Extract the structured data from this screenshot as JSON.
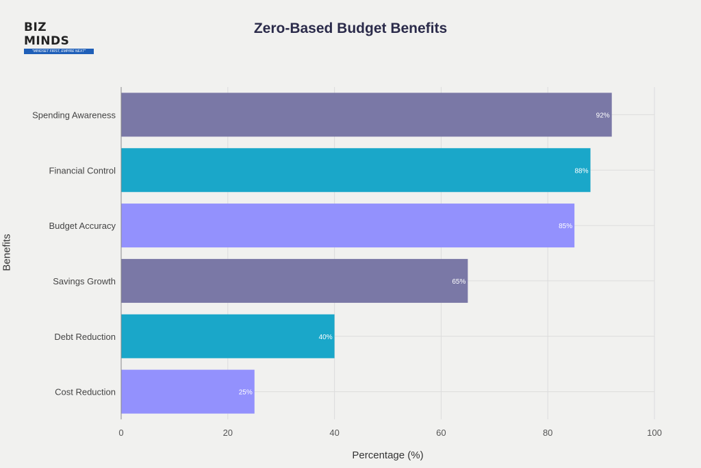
{
  "logo": {
    "brand": "BIZ MINDS",
    "tagline": "\"MINDSET FIRST, EMPIRE NEXT\""
  },
  "chart_data": {
    "type": "bar",
    "orientation": "horizontal",
    "title": "Zero-Based Budget Benefits",
    "xlabel": "Percentage (%)",
    "ylabel": "Benefits",
    "xlim": [
      0,
      100
    ],
    "xticks": [
      0,
      20,
      40,
      60,
      80,
      100
    ],
    "grid": true,
    "categories": [
      "Spending Awareness",
      "Financial Control",
      "Budget Accuracy",
      "Savings Growth",
      "Debt Reduction",
      "Cost Reduction"
    ],
    "values": [
      92,
      88,
      85,
      65,
      40,
      25
    ],
    "data_labels": [
      "92%",
      "88%",
      "85%",
      "65%",
      "40%",
      "25%"
    ],
    "colors": [
      "#7a78a6",
      "#1aa7c9",
      "#9391fd",
      "#7a78a6",
      "#1aa7c9",
      "#9391fd"
    ]
  }
}
